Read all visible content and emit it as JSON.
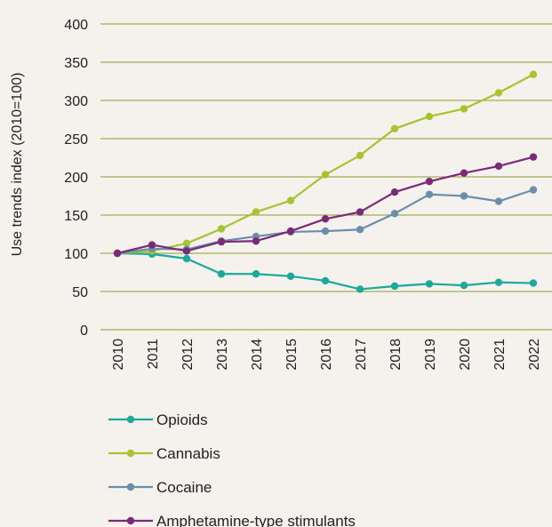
{
  "chart_data": {
    "type": "line",
    "title": "",
    "xlabel": "",
    "ylabel": "Use trends index (2010=100)",
    "ylim": [
      0,
      400
    ],
    "yticks": [
      0,
      50,
      100,
      150,
      200,
      250,
      300,
      350,
      400
    ],
    "x": [
      "2010",
      "2011",
      "2012",
      "2013",
      "2014",
      "2015",
      "2016",
      "2017",
      "2018",
      "2019",
      "2020",
      "2021",
      "2022"
    ],
    "grid": "horizontal",
    "legend_position": "bottom",
    "series": [
      {
        "name": "Opioids",
        "color": "#1aa99a",
        "values": [
          100,
          99,
          93,
          73,
          73,
          70,
          64,
          53,
          57,
          60,
          58,
          62,
          61
        ]
      },
      {
        "name": "Cannabis",
        "color": "#a6c330",
        "values": [
          100,
          103,
          113,
          132,
          154,
          169,
          203,
          228,
          263,
          279,
          289,
          310,
          334
        ]
      },
      {
        "name": "Cocaine",
        "color": "#6a8fad",
        "values": [
          100,
          106,
          105,
          116,
          122,
          128,
          129,
          131,
          152,
          177,
          175,
          168,
          183
        ]
      },
      {
        "name": "Amphetamine-type stimulants",
        "color": "#7b2a78",
        "values": [
          100,
          111,
          103,
          115,
          116,
          129,
          145,
          154,
          180,
          194,
          205,
          214,
          226
        ]
      }
    ],
    "grid_color": "#8f9a2a"
  }
}
